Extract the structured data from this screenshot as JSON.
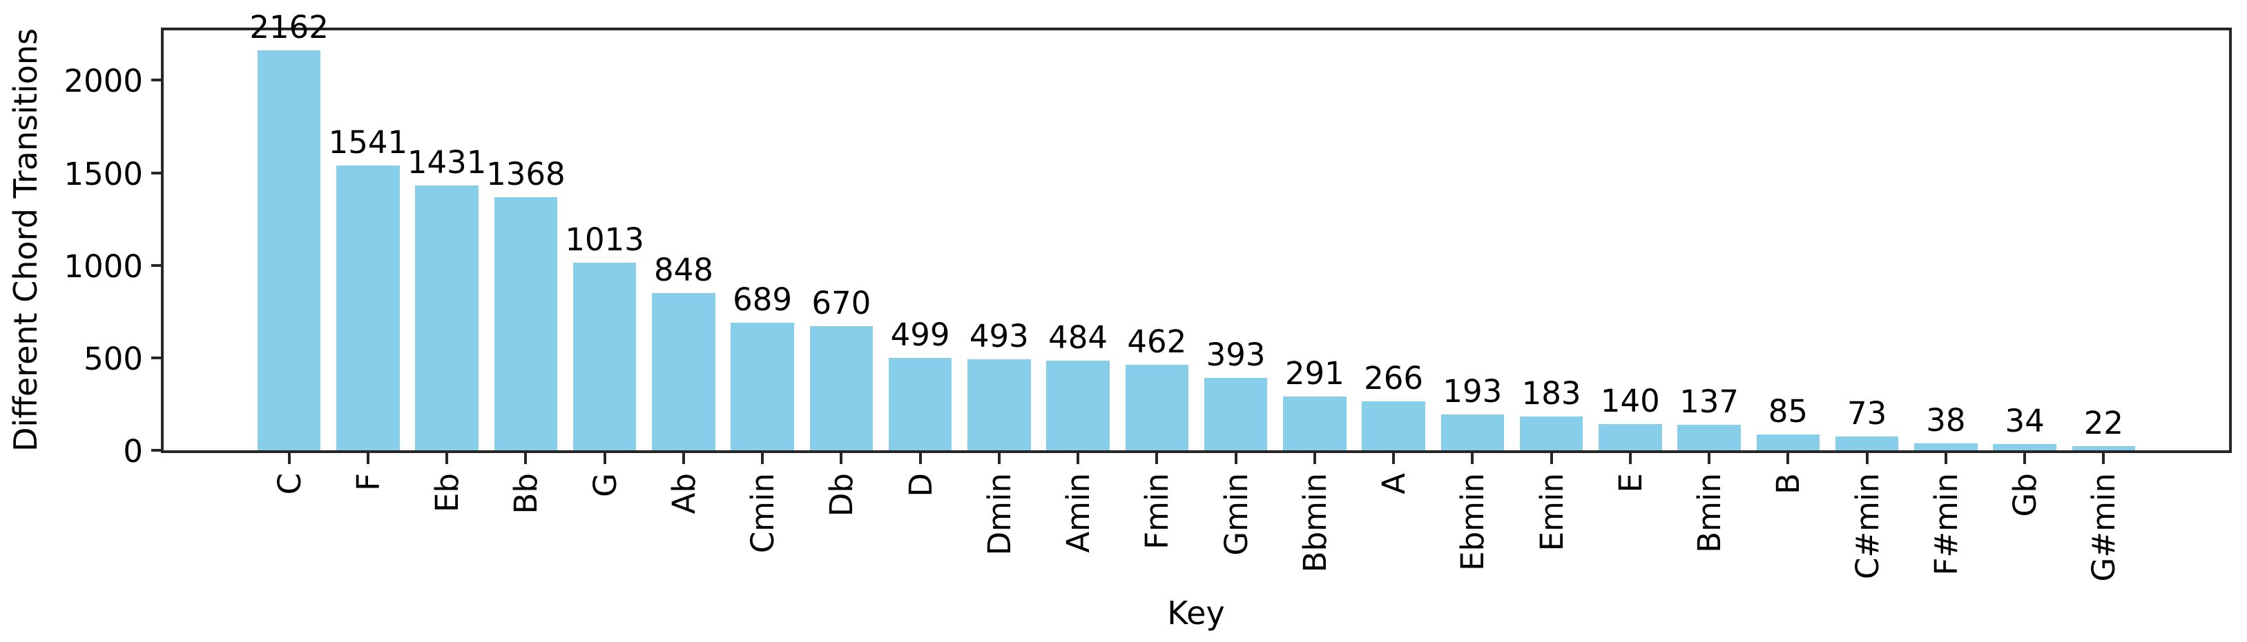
{
  "chart_data": {
    "type": "bar",
    "title": "",
    "xlabel": "Key",
    "ylabel": "Different Chord Transitions",
    "categories": [
      "C",
      "F",
      "Eb",
      "Bb",
      "G",
      "Ab",
      "Cmin",
      "Db",
      "D",
      "Dmin",
      "Amin",
      "Fmin",
      "Gmin",
      "Bbmin",
      "A",
      "Ebmin",
      "Emin",
      "E",
      "Bmin",
      "B",
      "C#min",
      "F#min",
      "Gb",
      "G#min"
    ],
    "values": [
      2162,
      1541,
      1431,
      1368,
      1013,
      848,
      689,
      670,
      499,
      493,
      484,
      462,
      393,
      291,
      266,
      193,
      183,
      140,
      137,
      85,
      73,
      38,
      34,
      22
    ],
    "yticks": [
      0,
      500,
      1000,
      1500,
      2000
    ],
    "ylim": [
      0,
      2270
    ],
    "grid": false,
    "legend": null,
    "bar_color": "#87CEEB",
    "spine_color": "#262626",
    "text_color": "#000000",
    "value_labels_shown": true,
    "x_tick_rotation_degrees": 90
  }
}
